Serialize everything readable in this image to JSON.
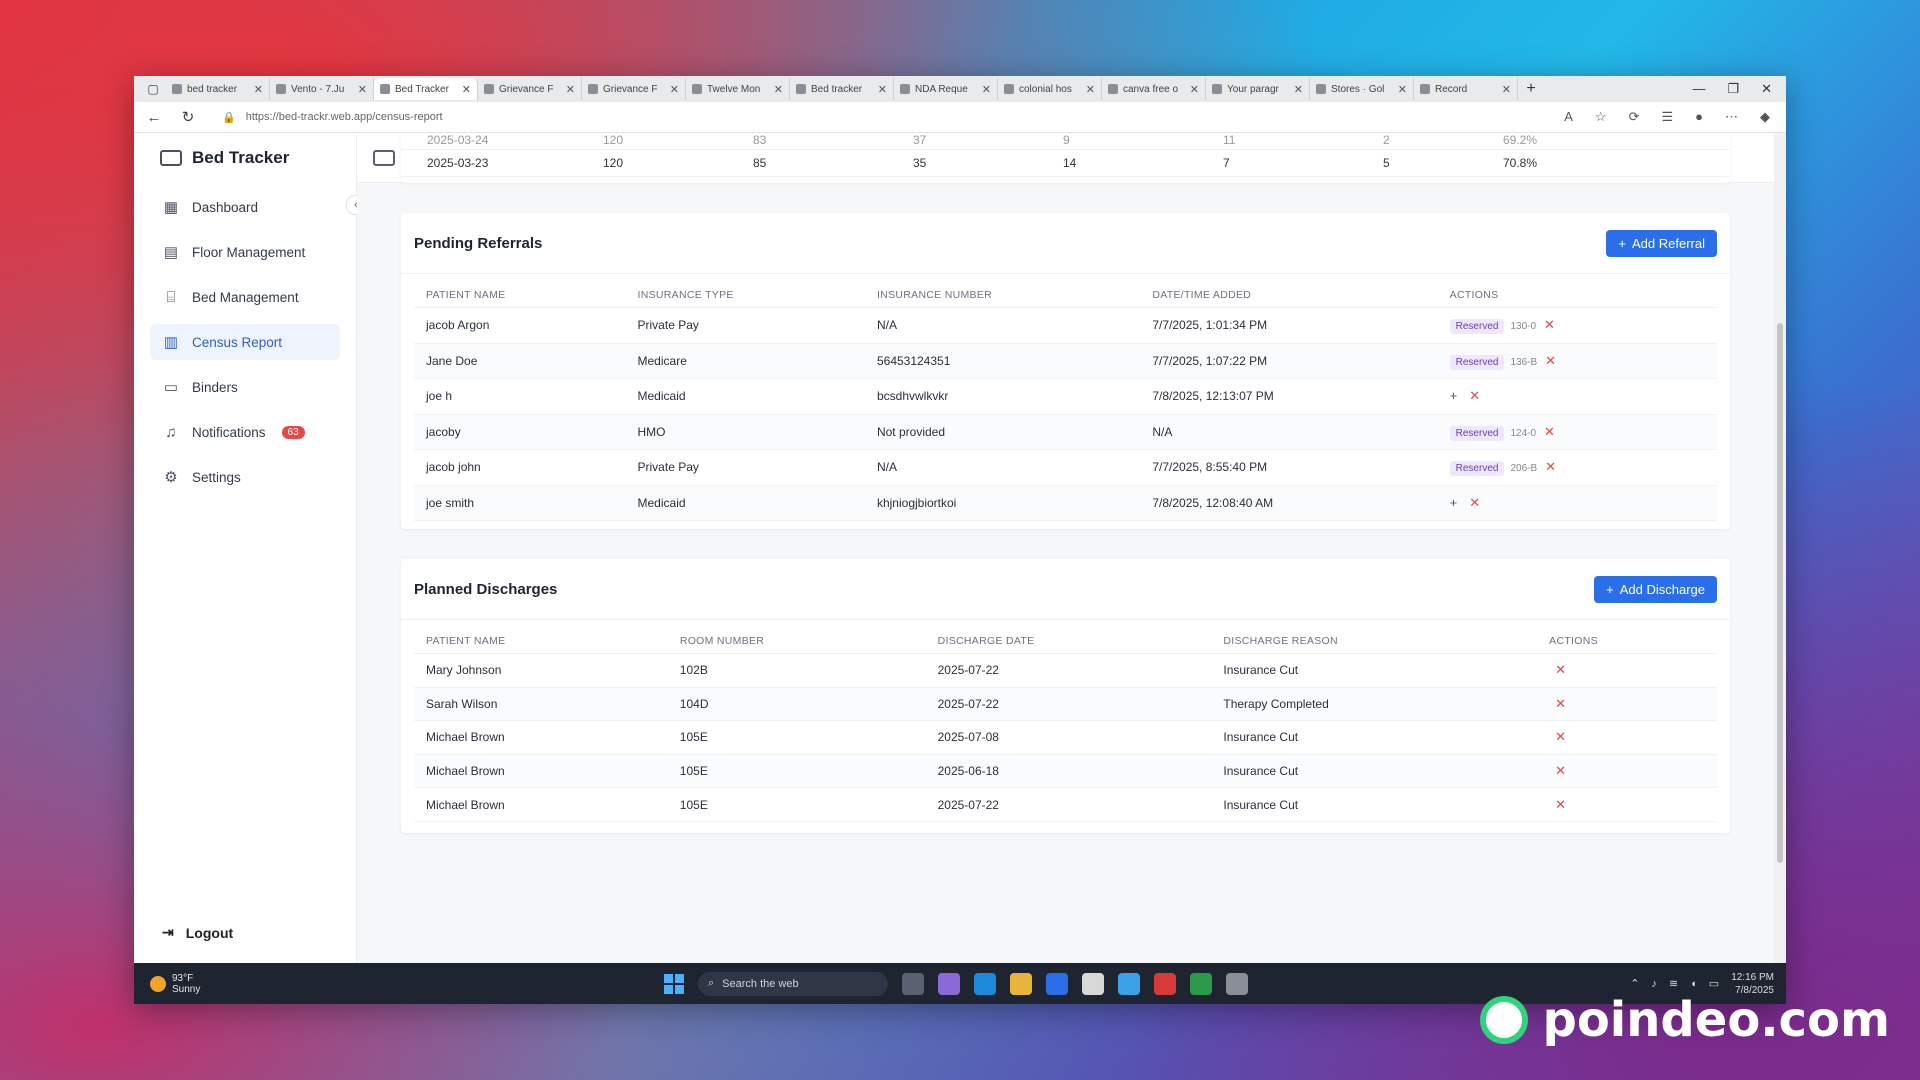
{
  "browser": {
    "tabs": [
      {
        "title": "bed tracker",
        "active": false
      },
      {
        "title": "Vento - 7.Ju",
        "active": false
      },
      {
        "title": "Bed Tracker",
        "active": true
      },
      {
        "title": "Grievance F",
        "active": false
      },
      {
        "title": "Grievance F",
        "active": false
      },
      {
        "title": "Twelve Mon",
        "active": false
      },
      {
        "title": "Bed tracker",
        "active": false
      },
      {
        "title": "NDA Reque",
        "active": false
      },
      {
        "title": "colonial hos",
        "active": false
      },
      {
        "title": "canva free o",
        "active": false
      },
      {
        "title": "Your paragr",
        "active": false
      },
      {
        "title": "Stores · Gol",
        "active": false
      },
      {
        "title": "Record",
        "active": false
      }
    ],
    "url": "https://bed-trackr.web.app/census-report"
  },
  "app": {
    "title": "Bed Tracker"
  },
  "sidebar": {
    "items": [
      {
        "label": "Dashboard",
        "icon": "grid-icon",
        "active": false
      },
      {
        "label": "Floor Management",
        "icon": "table-icon",
        "active": false
      },
      {
        "label": "Bed Management",
        "icon": "bed-icon",
        "active": false
      },
      {
        "label": "Census Report",
        "icon": "document-icon",
        "active": true
      },
      {
        "label": "Binders",
        "icon": "folder-icon",
        "active": false
      },
      {
        "label": "Notifications",
        "icon": "bell-icon",
        "active": false,
        "badge": "63"
      },
      {
        "label": "Settings",
        "icon": "gear-icon",
        "active": false
      }
    ],
    "logout": "Logout"
  },
  "census": {
    "rows": [
      [
        "2025-03-24",
        "120",
        "83",
        "37",
        "9",
        "11",
        "2",
        "69.2%"
      ],
      [
        "2025-03-23",
        "120",
        "85",
        "35",
        "14",
        "7",
        "5",
        "70.8%"
      ]
    ]
  },
  "referrals": {
    "title": "Pending Referrals",
    "add_label": "Add Referral",
    "headers": [
      "PATIENT NAME",
      "INSURANCE TYPE",
      "INSURANCE NUMBER",
      "DATE/TIME ADDED",
      "ACTIONS"
    ],
    "rows": [
      {
        "name": "jacob Argon",
        "insurance": "Private Pay",
        "number": "N/A",
        "added": "7/7/2025, 1:01:34 PM",
        "status": "Reserved",
        "room": "130-0"
      },
      {
        "name": "Jane Doe",
        "insurance": "Medicare",
        "number": "56453124351",
        "added": "7/7/2025, 1:07:22 PM",
        "status": "Reserved",
        "room": "136-B"
      },
      {
        "name": "joe h",
        "insurance": "Medicaid",
        "number": "bcsdhvwlkvkr",
        "added": "7/8/2025, 12:13:07 PM",
        "status": "",
        "room": ""
      },
      {
        "name": "jacoby",
        "insurance": "HMO",
        "number": "Not provided",
        "added": "N/A",
        "status": "Reserved",
        "room": "124-0"
      },
      {
        "name": "jacob john",
        "insurance": "Private Pay",
        "number": "N/A",
        "added": "7/7/2025, 8:55:40 PM",
        "status": "Reserved",
        "room": "206-B"
      },
      {
        "name": "joe smith",
        "insurance": "Medicaid",
        "number": "khjniogjbiortkoi",
        "added": "7/8/2025, 12:08:40 AM",
        "status": "",
        "room": ""
      }
    ]
  },
  "discharges": {
    "title": "Planned Discharges",
    "add_label": "Add Discharge",
    "headers": [
      "PATIENT NAME",
      "ROOM NUMBER",
      "DISCHARGE DATE",
      "DISCHARGE REASON",
      "ACTIONS"
    ],
    "rows": [
      {
        "name": "Mary Johnson",
        "room": "102B",
        "date": "2025-07-22",
        "reason": "Insurance Cut"
      },
      {
        "name": "Sarah Wilson",
        "room": "104D",
        "date": "2025-07-22",
        "reason": "Therapy Completed"
      },
      {
        "name": "Michael Brown",
        "room": "105E",
        "date": "2025-07-08",
        "reason": "Insurance Cut"
      },
      {
        "name": "Michael Brown",
        "room": "105E",
        "date": "2025-06-18",
        "reason": "Insurance Cut"
      },
      {
        "name": "Michael Brown",
        "room": "105E",
        "date": "2025-07-22",
        "reason": "Insurance Cut"
      }
    ]
  },
  "taskbar": {
    "weather_temp": "93°F",
    "weather_desc": "Sunny",
    "search_placeholder": "Search the web",
    "time": "12:16 PM",
    "date": "7/8/2025"
  },
  "watermark": "poindeo.com",
  "colors": {
    "accent": "#2a6ee8",
    "danger": "#e04848",
    "reserved_bg": "#efe7fb"
  }
}
